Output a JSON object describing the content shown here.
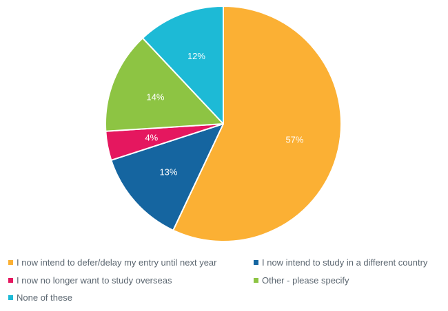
{
  "chart_data": {
    "type": "pie",
    "title": "",
    "start_angle_deg": 0,
    "direction": "clockwise",
    "legend_position": "bottom",
    "slices": [
      {
        "label": "I now intend to defer/delay my entry until next year",
        "value": 57,
        "display": "57%",
        "color": "#FBB034"
      },
      {
        "label": "I now intend to study in a different country",
        "value": 13,
        "display": "13%",
        "color": "#1565A0"
      },
      {
        "label": "I now no longer want to study overseas",
        "value": 4,
        "display": "4%",
        "color": "#E5175F"
      },
      {
        "label": "Other - please specify",
        "value": 14,
        "display": "14%",
        "color": "#8DC443"
      },
      {
        "label": "None of these",
        "value": 12,
        "display": "12%",
        "color": "#1DBAD6"
      }
    ]
  }
}
